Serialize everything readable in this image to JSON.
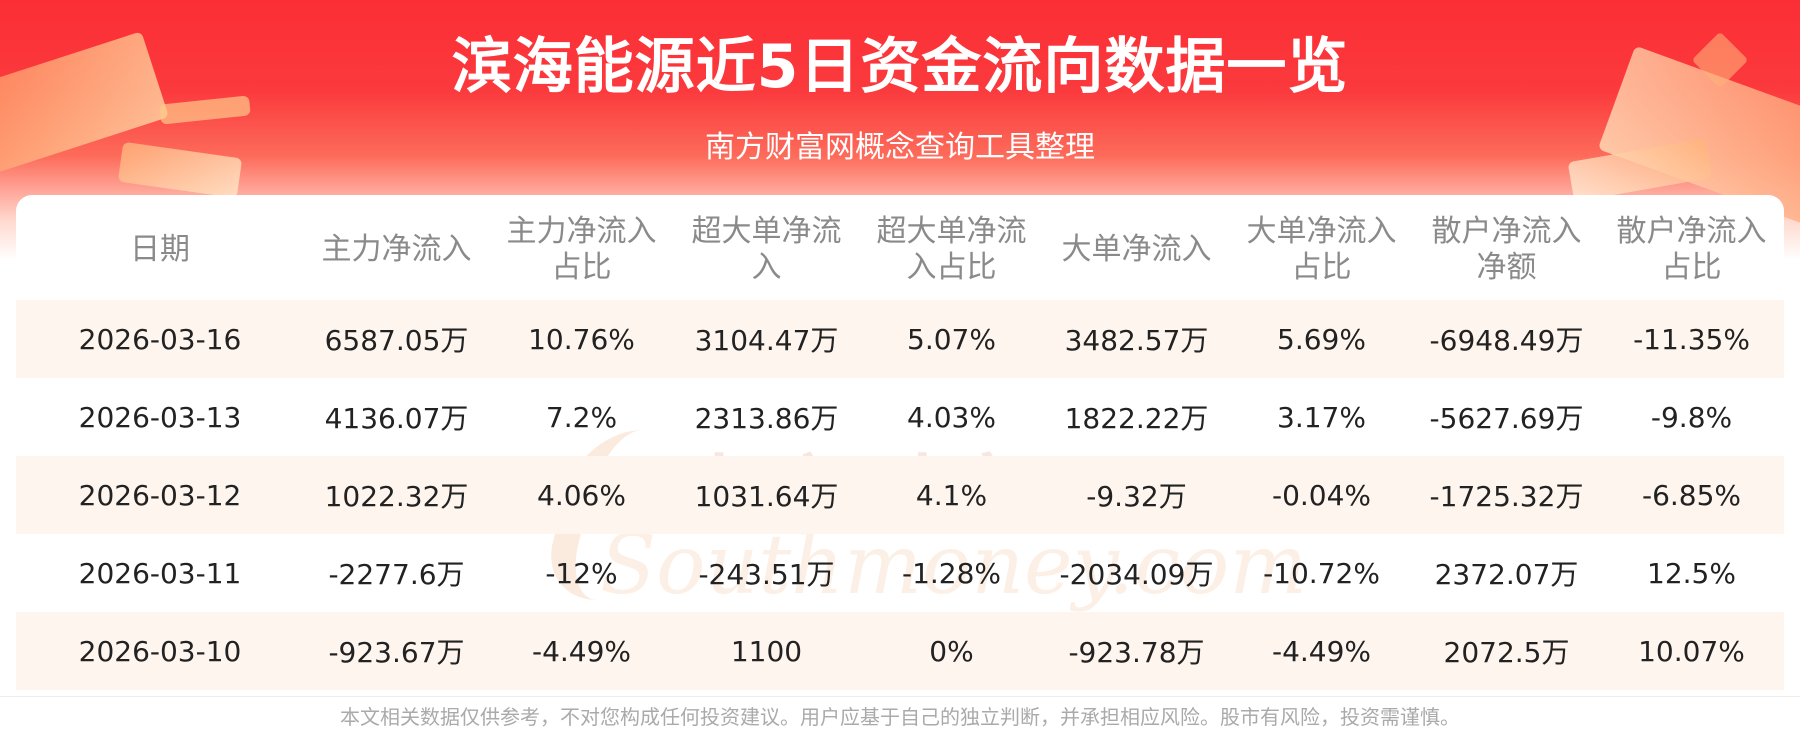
{
  "header": {
    "title": "滨海能源近5日资金流向数据一览",
    "subtitle": "南方财富网概念查询工具整理"
  },
  "watermark": {
    "cn": "南方财富网",
    "en": "Southmoney.com"
  },
  "table": {
    "columns": [
      "日期",
      "主力净流入",
      "主力净流入\n占比",
      "超大单净流\n入",
      "超大单净流\n入占比",
      "大单净流入",
      "大单净流入\n占比",
      "散户净流入\n净额",
      "散户净流入\n占比"
    ],
    "rows": [
      [
        "2026-03-16",
        "6587.05万",
        "10.76%",
        "3104.47万",
        "5.07%",
        "3482.57万",
        "5.69%",
        "-6948.49万",
        "-11.35%"
      ],
      [
        "2026-03-13",
        "4136.07万",
        "7.2%",
        "2313.86万",
        "4.03%",
        "1822.22万",
        "3.17%",
        "-5627.69万",
        "-9.8%"
      ],
      [
        "2026-03-12",
        "1022.32万",
        "4.06%",
        "1031.64万",
        "4.1%",
        "-9.32万",
        "-0.04%",
        "-1725.32万",
        "-6.85%"
      ],
      [
        "2026-03-11",
        "-2277.6万",
        "-12%",
        "-243.51万",
        "-1.28%",
        "-2034.09万",
        "-10.72%",
        "2372.07万",
        "12.5%"
      ],
      [
        "2026-03-10",
        "-923.67万",
        "-4.49%",
        "1100",
        "0%",
        "-923.78万",
        "-4.49%",
        "2072.5万",
        "10.07%"
      ]
    ]
  },
  "footer": {
    "disclaimer": "本文相关数据仅供参考，不对您构成任何投资建议。用户应基于自己的独立判断，并承担相应风险。股市有风险，投资需谨慎。"
  },
  "colors": {
    "banner_red": "#fb2e35",
    "row_alt": "#fff5ef",
    "header_text": "#8a8a8a"
  }
}
